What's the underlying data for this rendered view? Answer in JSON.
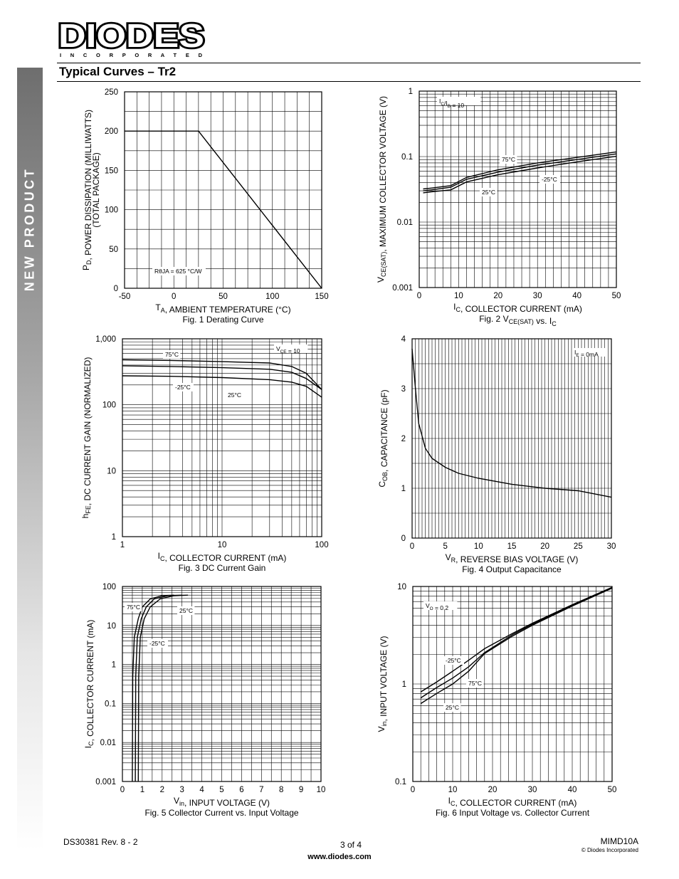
{
  "sidebar": {
    "text": "NEW PRODUCT"
  },
  "header": {
    "logo_text": "DIODES",
    "logo_subtext": "I N C O R P O R A T E D",
    "section_title": "Typical Curves – Tr2"
  },
  "footer": {
    "doc_number": "DS30381 Rev. 8 - 2",
    "page": "3 of 4",
    "website": "www.diodes.com",
    "part": "MIMD10A",
    "copyright": "© Diodes Incorporated"
  },
  "chart_data": [
    {
      "id": "fig1",
      "type": "line",
      "caption": "Fig. 1  Derating Curve",
      "xlabel": "T_A, AMBIENT TEMPERATURE (°C)",
      "ylabel": "P_D, POWER DISSIPATION (MILLIWATTS)",
      "ylabel2": "(TOTAL PACKAGE)",
      "x_ticks": [
        "-50",
        "0",
        "50",
        "100",
        "150"
      ],
      "y_ticks": [
        "0",
        "50",
        "100",
        "150",
        "200",
        "250"
      ],
      "xlim": [
        -50,
        150
      ],
      "ylim": [
        0,
        250
      ],
      "annotation": "RθJA = 625 °C/W",
      "series": [
        {
          "name": "P_D",
          "x": [
            -50,
            25,
            150
          ],
          "y": [
            200,
            200,
            0
          ]
        }
      ]
    },
    {
      "id": "fig2",
      "type": "line",
      "caption": "Fig. 2  V_CE(SAT) vs. I_C",
      "xlabel": "I_C, COLLECTOR CURRENT (mA)",
      "ylabel": "V_CE(SAT), MAXIMUM COLLECTOR VOLTAGE (V)",
      "x_ticks": [
        "0",
        "10",
        "20",
        "30",
        "40",
        "50"
      ],
      "y_ticks": [
        "0.001",
        "0.01",
        "0.1",
        "1"
      ],
      "xlim": [
        0,
        50
      ],
      "ylim": [
        0.001,
        1
      ],
      "yscale": "log",
      "condition": "I_C/I_B = 10",
      "series": [
        {
          "name": "75°C",
          "x": [
            1,
            3,
            8,
            12,
            20,
            30,
            40,
            50
          ],
          "y": [
            0.032,
            0.033,
            0.036,
            0.048,
            0.063,
            0.08,
            0.097,
            0.118
          ]
        },
        {
          "name": "-25°C",
          "x": [
            1,
            3,
            8,
            12,
            20,
            30,
            40,
            50
          ],
          "y": [
            0.03,
            0.031,
            0.034,
            0.045,
            0.058,
            0.074,
            0.09,
            0.11
          ]
        },
        {
          "name": "25°C",
          "x": [
            1,
            3,
            8,
            12,
            20,
            30,
            40,
            50
          ],
          "y": [
            0.028,
            0.029,
            0.031,
            0.041,
            0.053,
            0.067,
            0.083,
            0.101
          ]
        }
      ]
    },
    {
      "id": "fig3",
      "type": "line",
      "caption": "Fig. 3  DC Current Gain",
      "xlabel": "I_C, COLLECTOR CURRENT (mA)",
      "ylabel": "h_FE, DC CURRENT GAIN (NORMALIZED)",
      "x_ticks": [
        "1",
        "10",
        "100"
      ],
      "y_ticks": [
        "1",
        "10",
        "100",
        "1,000"
      ],
      "xlim": [
        1,
        100
      ],
      "ylim": [
        1,
        1000
      ],
      "xscale": "log",
      "yscale": "log",
      "condition": "V_CE = 10",
      "series": [
        {
          "name": "75°C",
          "x": [
            1,
            3,
            10,
            30,
            50,
            70,
            100
          ],
          "y": [
            480,
            470,
            450,
            430,
            380,
            300,
            170
          ]
        },
        {
          "name": "25°C",
          "x": [
            1,
            3,
            10,
            30,
            50,
            70,
            100
          ],
          "y": [
            390,
            380,
            365,
            345,
            310,
            250,
            170
          ]
        },
        {
          "name": "-25°C",
          "x": [
            1,
            3,
            10,
            30,
            50,
            70,
            100
          ],
          "y": [
            275,
            270,
            258,
            240,
            220,
            190,
            130
          ]
        }
      ]
    },
    {
      "id": "fig4",
      "type": "line",
      "caption": "Fig. 4  Output Capacitance",
      "xlabel": "V_R, REVERSE BIAS VOLTAGE (V)",
      "ylabel": "C_OB, CAPACITANCE (pF)",
      "x_ticks": [
        "0",
        "5",
        "10",
        "15",
        "20",
        "25",
        "30"
      ],
      "y_ticks": [
        "0",
        "1",
        "2",
        "3",
        "4"
      ],
      "xlim": [
        0,
        30
      ],
      "ylim": [
        0,
        4
      ],
      "condition": "I_E = 0mA",
      "series": [
        {
          "name": "C_OB",
          "x": [
            0,
            0.5,
            1,
            2,
            3,
            5,
            7,
            10,
            15,
            20,
            25,
            30
          ],
          "y": [
            3.8,
            3.0,
            2.3,
            1.8,
            1.6,
            1.42,
            1.3,
            1.2,
            1.08,
            1.0,
            0.95,
            0.82
          ]
        }
      ]
    },
    {
      "id": "fig5",
      "type": "line",
      "caption": "Fig. 5  Collector Current vs. Input Voltage",
      "xlabel": "V_in, INPUT VOLTAGE (V)",
      "ylabel": "I_C, COLLECTOR CURRENT (mA)",
      "x_ticks": [
        "0",
        "1",
        "2",
        "3",
        "4",
        "5",
        "6",
        "7",
        "8",
        "9",
        "10"
      ],
      "y_ticks": [
        "0.001",
        "0.01",
        "0.1",
        "1",
        "10",
        "100"
      ],
      "xlim": [
        0,
        10
      ],
      "ylim": [
        0.001,
        100
      ],
      "yscale": "log",
      "series": [
        {
          "name": "75°C",
          "x": [
            0.5,
            0.52,
            0.6,
            0.8,
            1.0,
            1.4,
            2.0,
            2.6
          ],
          "y": [
            0.001,
            0.5,
            5,
            15,
            30,
            48,
            58,
            60
          ]
        },
        {
          "name": "25°C",
          "x": [
            0.65,
            0.67,
            0.75,
            0.95,
            1.2,
            1.6,
            2.3,
            3.0
          ],
          "y": [
            0.001,
            0.5,
            5,
            15,
            30,
            48,
            58,
            60
          ]
        },
        {
          "name": "-25°C",
          "x": [
            0.8,
            0.82,
            0.9,
            1.1,
            1.4,
            1.9,
            2.6,
            3.3
          ],
          "y": [
            0.001,
            0.5,
            5,
            15,
            30,
            48,
            58,
            60
          ]
        }
      ]
    },
    {
      "id": "fig6",
      "type": "line",
      "caption": "Fig. 6  Input Voltage vs. Collector Current",
      "xlabel": "I_C, COLLECTOR CURRENT (mA)",
      "ylabel": "V_in, INPUT VOLTAGE (V)",
      "x_ticks": [
        "0",
        "10",
        "20",
        "30",
        "40",
        "50"
      ],
      "y_ticks": [
        "0.1",
        "1",
        "10"
      ],
      "xlim": [
        0,
        50
      ],
      "ylim": [
        0.1,
        10
      ],
      "yscale": "log",
      "condition": "V_O = 0.2",
      "series": [
        {
          "name": "-25°C",
          "x": [
            2,
            6,
            10,
            14,
            18,
            25,
            30,
            40,
            50
          ],
          "y": [
            0.83,
            1.05,
            1.35,
            1.75,
            2.3,
            3.3,
            4.2,
            6.5,
            9.8
          ]
        },
        {
          "name": "75°C",
          "x": [
            2,
            6,
            10,
            14,
            18,
            25,
            30,
            40,
            50
          ],
          "y": [
            0.72,
            0.92,
            1.15,
            1.5,
            2.1,
            3.2,
            4.1,
            6.4,
            9.7
          ]
        },
        {
          "name": "25°C",
          "x": [
            2,
            6,
            10,
            14,
            18,
            25,
            30,
            40,
            50
          ],
          "y": [
            0.63,
            0.8,
            1.0,
            1.35,
            2.05,
            3.1,
            4.0,
            6.3,
            9.6
          ]
        }
      ]
    }
  ]
}
